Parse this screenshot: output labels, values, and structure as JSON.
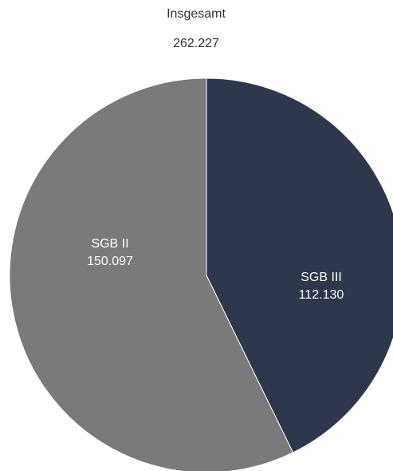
{
  "chart_data": {
    "type": "pie",
    "title": "Insgesamt",
    "subtitle": "262.227",
    "categories": [
      "SGB III",
      "SGB II"
    ],
    "values": [
      112130,
      150097
    ],
    "value_labels": [
      "112.130",
      "150.097"
    ],
    "colors": [
      "#2e374b",
      "#7a7a7a"
    ]
  }
}
